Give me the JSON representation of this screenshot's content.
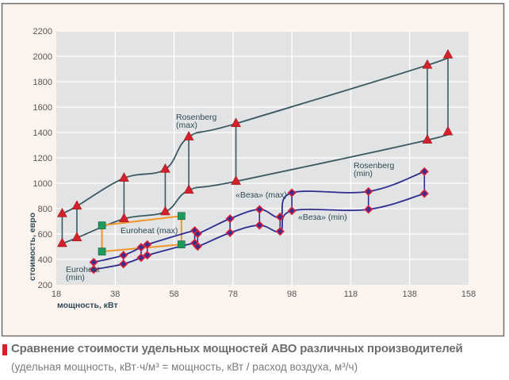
{
  "chart_data": {
    "type": "line",
    "xlabel": "мощность, кВт",
    "ylabel": "стоимость, евро",
    "xlim": [
      18,
      158
    ],
    "ylim": [
      200,
      2200
    ],
    "xticks": [
      18,
      38,
      58,
      78,
      98,
      118,
      138,
      158
    ],
    "yticks": [
      200,
      400,
      600,
      800,
      1000,
      1200,
      1400,
      1600,
      1800,
      2000,
      2200
    ],
    "grid": true,
    "series": [
      {
        "name": "Rosenberg (max)",
        "label_lines": [
          "Rosenberg",
          "(max)"
        ],
        "group": "Rosenberg",
        "marker": "triangle",
        "color": "#3b5963",
        "marker_color": "#d4202b",
        "x": [
          20,
          25,
          41,
          55,
          63,
          79,
          144,
          151
        ],
        "y": [
          760,
          820,
          1040,
          1110,
          1365,
          1470,
          1930,
          2010
        ]
      },
      {
        "name": "Rosenberg (min)",
        "label_lines": [
          "Rosenberg",
          "(min)"
        ],
        "group": "Rosenberg",
        "marker": "triangle",
        "color": "#3b5963",
        "marker_color": "#d4202b",
        "x": [
          20,
          25,
          41,
          55,
          63,
          79,
          144,
          151
        ],
        "y": [
          525,
          570,
          720,
          775,
          945,
          1015,
          1340,
          1405
        ]
      },
      {
        "name": "Euroheat (max)",
        "label_lines": [
          "Euroheat (max)"
        ],
        "group": "Euroheat",
        "marker": "square",
        "color": "#f0962a",
        "marker_color": "#1d9a5c",
        "x": [
          33.5,
          60.5
        ],
        "y": [
          668,
          742
        ]
      },
      {
        "name": "Euroheat (min)",
        "label_lines": [
          "Euroheat",
          "(min)"
        ],
        "group": "Euroheat",
        "marker": "square",
        "color": "#f0962a",
        "marker_color": "#1d9a5c",
        "x": [
          33.5,
          60.5
        ],
        "y": [
          462,
          518
        ]
      },
      {
        "name": "«Веза» (max)",
        "label_lines": [
          "«Веза» (max)"
        ],
        "group": "Veza",
        "marker": "diamond",
        "color": "#2c2d8e",
        "marker_color": "#e0203a",
        "x": [
          30.7,
          40.8,
          46.8,
          48.9,
          65,
          66,
          77,
          87,
          94,
          98,
          124,
          143
        ],
        "y": [
          378,
          433,
          496,
          517,
          627,
          602,
          721,
          794,
          735,
          925,
          935,
          1092
        ]
      },
      {
        "name": "«Веза» (min)",
        "label_lines": [
          "«Веза» (min)"
        ],
        "group": "Veza",
        "marker": "diamond",
        "color": "#2c2d8e",
        "marker_color": "#e0203a",
        "x": [
          30.7,
          40.8,
          46.8,
          48.9,
          65,
          66,
          77,
          87,
          94,
          98,
          124,
          143
        ],
        "y": [
          320,
          364,
          414,
          433,
          529,
          502,
          610,
          669,
          621,
          783,
          794,
          919
        ]
      }
    ],
    "colors": {
      "frame_bg": "#fbf3ee",
      "plot_bg": "#e2e3e5",
      "grid": "#ffffff",
      "caption_mark": "#d8202a"
    }
  },
  "caption": {
    "title": "Сравнение стоимости удельных мощностей АВО различных производителей",
    "subtitle": "(удельная мощность, кВт·ч/м³ = мощность, кВт / расход воздуха, м³/ч)"
  }
}
